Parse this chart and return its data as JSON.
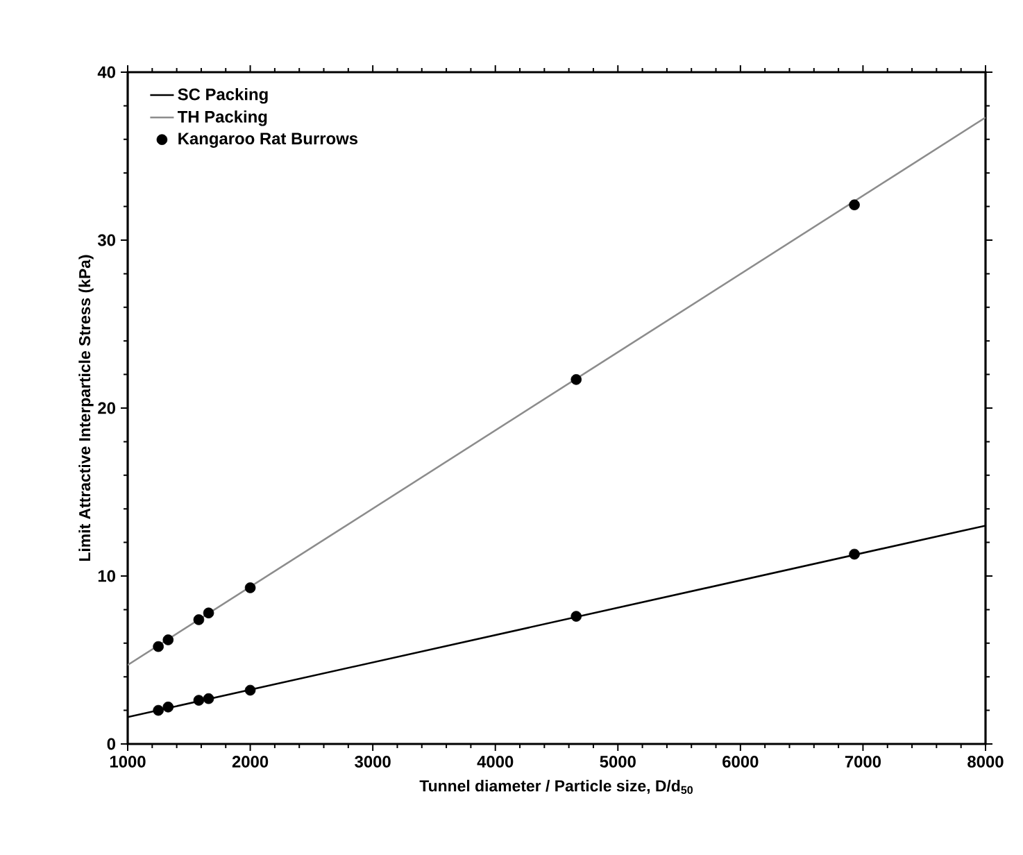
{
  "chart_data": {
    "type": "line",
    "xlabel": "Tunnel diameter / Particle size, D/d$_{50}$",
    "ylabel": "Limit Attractive Interparticle Stress (kPa)",
    "xlim": [
      1000,
      8000
    ],
    "ylim": [
      0,
      40
    ],
    "xticks": [
      1000,
      2000,
      3000,
      4000,
      5000,
      6000,
      7000,
      8000
    ],
    "yticks": [
      0,
      10,
      20,
      30,
      40
    ],
    "legend": "top left",
    "series": [
      {
        "name": "SC Packing",
        "color": "#000000",
        "marker": "none",
        "x": [
          1000,
          8000
        ],
        "values": [
          1.6,
          13.0
        ]
      },
      {
        "name": "TH Packing",
        "color": "#8c8c8c",
        "marker": "none",
        "x": [
          1000,
          8000
        ],
        "values": [
          4.7,
          37.3
        ]
      },
      {
        "name": "Kangaroo Rat Burrows",
        "type": "scatter",
        "color": "#000000",
        "marker": "circle",
        "x": [
          1250,
          1330,
          1580,
          1660,
          2000,
          4660,
          6930,
          1250,
          1330,
          1580,
          1660,
          2000,
          4660,
          6930
        ],
        "values": [
          2.0,
          2.2,
          2.6,
          2.7,
          3.2,
          7.6,
          11.3,
          5.8,
          6.2,
          7.4,
          7.8,
          9.3,
          21.7,
          32.1
        ]
      }
    ]
  }
}
